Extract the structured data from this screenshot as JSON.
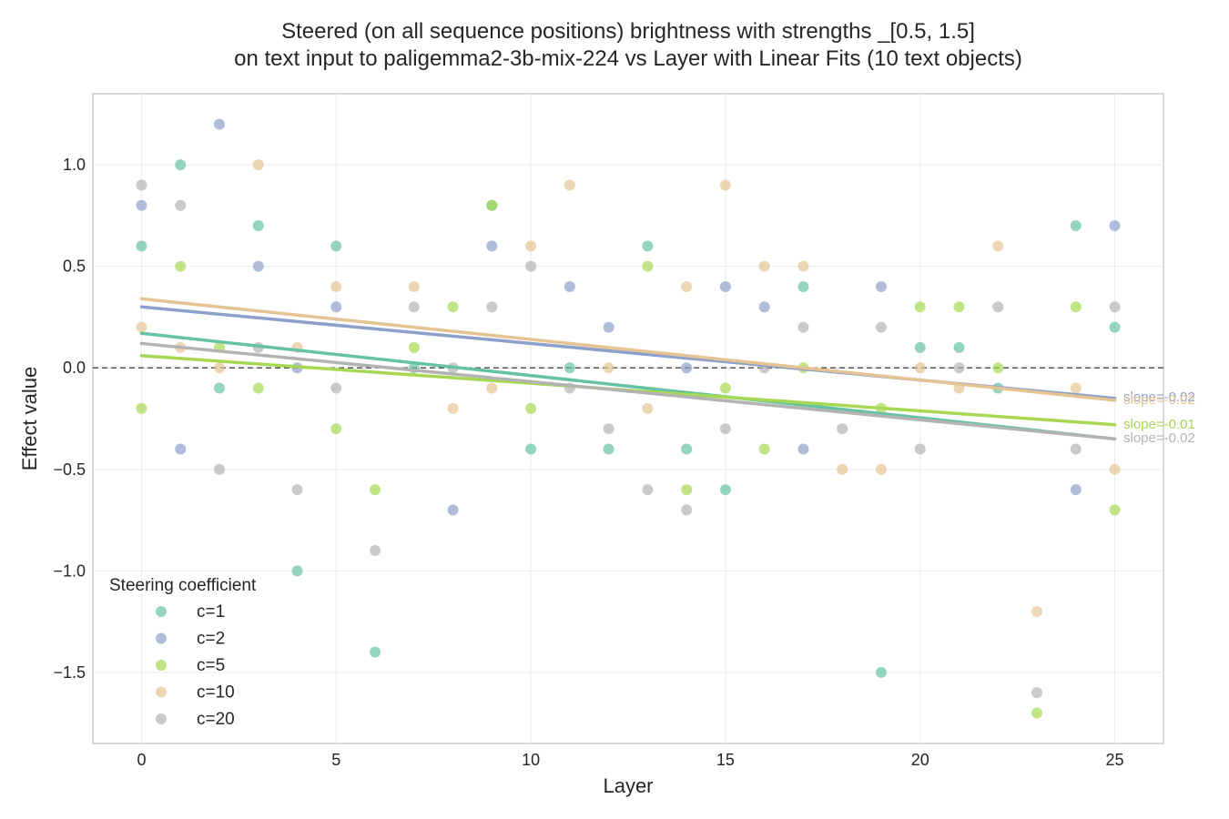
{
  "chart_data": {
    "type": "scatter",
    "title": "Steered (on all sequence positions) brightness with strengths _[0.5, 1.5]",
    "subtitle": "on text input to paligemma2-3b-mix-224 vs Layer with Linear Fits (10 text objects)",
    "xlabel": "Layer",
    "ylabel": "Effect value",
    "xlim": [
      -1.25,
      26.25
    ],
    "ylim": [
      -1.85,
      1.35
    ],
    "xticks": [
      0,
      5,
      10,
      15,
      20,
      25
    ],
    "xtick_labels": [
      "0",
      "5",
      "10",
      "15",
      "20",
      "25"
    ],
    "yticks": [
      -1.5,
      -1.0,
      -0.5,
      0.0,
      0.5,
      1.0
    ],
    "ytick_labels": [
      "−1.5",
      "−1.0",
      "−0.5",
      "0.0",
      "0.5",
      "1.0"
    ],
    "grid": true,
    "reference_line": 0.0,
    "legend": {
      "title": "Steering coefficient",
      "placement": "lower-left"
    },
    "series": [
      {
        "name": "c=1",
        "color": "#66c2a5",
        "x": [
          0,
          1,
          2,
          3,
          5,
          7,
          9,
          10,
          11,
          12,
          13,
          14,
          15,
          17,
          19,
          20,
          21,
          22,
          24,
          25,
          4,
          6
        ],
        "y": [
          0.6,
          1.0,
          -0.1,
          0.7,
          0.6,
          0.0,
          0.8,
          -0.4,
          0.0,
          -0.4,
          0.6,
          -0.4,
          -0.6,
          0.4,
          -1.5,
          0.1,
          0.1,
          -0.1,
          0.7,
          0.2,
          -1.0,
          -1.4
        ],
        "fit": {
          "x": [
            0,
            25
          ],
          "y": [
            0.17,
            -0.35
          ]
        },
        "slope_label": ""
      },
      {
        "name": "c=2",
        "color": "#8da0cb",
        "x": [
          0,
          1,
          2,
          3,
          4,
          5,
          8,
          9,
          11,
          12,
          14,
          15,
          16,
          17,
          19,
          24,
          25
        ],
        "y": [
          0.8,
          -0.4,
          1.2,
          0.5,
          0.0,
          0.3,
          -0.7,
          0.6,
          0.4,
          0.2,
          0.0,
          0.4,
          0.3,
          -0.4,
          0.4,
          -0.6,
          0.7
        ],
        "fit": {
          "x": [
            0,
            25
          ],
          "y": [
            0.3,
            -0.15
          ]
        },
        "slope_label": "slope=-0.02"
      },
      {
        "name": "c=5",
        "color": "#a6d854",
        "x": [
          0,
          1,
          2,
          3,
          5,
          6,
          7,
          8,
          9,
          10,
          13,
          14,
          15,
          16,
          17,
          19,
          20,
          21,
          22,
          23,
          24,
          25
        ],
        "y": [
          -0.2,
          0.5,
          0.1,
          -0.1,
          -0.3,
          -0.6,
          0.1,
          0.3,
          0.8,
          -0.2,
          0.5,
          -0.6,
          -0.1,
          -0.4,
          0.0,
          -0.2,
          0.3,
          0.3,
          0.0,
          -1.7,
          0.3,
          -0.7
        ],
        "fit": {
          "x": [
            0,
            25
          ],
          "y": [
            0.06,
            -0.28
          ]
        },
        "slope_label": "slope=-0.01"
      },
      {
        "name": "c=10",
        "color": "#e5c494",
        "x": [
          0,
          1,
          2,
          3,
          4,
          5,
          7,
          8,
          9,
          10,
          11,
          12,
          13,
          14,
          15,
          16,
          17,
          18,
          19,
          20,
          21,
          22,
          23,
          24,
          25
        ],
        "y": [
          0.2,
          0.1,
          0.0,
          1.0,
          0.1,
          0.4,
          0.4,
          -0.2,
          -0.1,
          0.6,
          0.9,
          0.0,
          -0.2,
          0.4,
          0.9,
          0.5,
          0.5,
          -0.5,
          -0.5,
          0.0,
          -0.1,
          0.6,
          -1.2,
          -0.1,
          -0.5
        ],
        "fit": {
          "x": [
            0,
            25
          ],
          "y": [
            0.34,
            -0.16
          ]
        },
        "slope_label": "slope=-0.02"
      },
      {
        "name": "c=20",
        "color": "#b3b3b3",
        "x": [
          0,
          1,
          2,
          3,
          4,
          5,
          6,
          7,
          8,
          9,
          10,
          11,
          12,
          13,
          14,
          15,
          16,
          17,
          18,
          19,
          20,
          21,
          22,
          23,
          24,
          25
        ],
        "y": [
          0.9,
          0.8,
          -0.5,
          0.1,
          -0.6,
          -0.1,
          -0.9,
          0.3,
          0.0,
          0.3,
          0.5,
          -0.1,
          -0.3,
          -0.6,
          -0.7,
          -0.3,
          0.0,
          0.2,
          -0.3,
          0.2,
          -0.4,
          0.0,
          0.3,
          -1.6,
          -0.4,
          0.3
        ],
        "fit": {
          "x": [
            0,
            25
          ],
          "y": [
            0.12,
            -0.35
          ]
        },
        "slope_label": "slope=-0.02"
      }
    ]
  }
}
